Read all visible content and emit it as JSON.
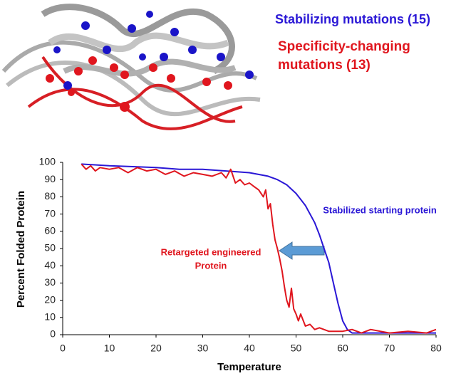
{
  "structure_labels": [
    "Stabilizing mutations (15)",
    "Specificity-changing",
    "mutations (13)"
  ],
  "chart_data": {
    "type": "line",
    "xlabel": "Temperature",
    "ylabel": "Percent Folded Protein",
    "xlim": [
      0,
      80
    ],
    "ylim": [
      0,
      100
    ],
    "xticks": [
      0,
      10,
      20,
      30,
      40,
      50,
      60,
      70,
      80
    ],
    "yticks": [
      0,
      10,
      20,
      30,
      40,
      50,
      60,
      70,
      80,
      90,
      100
    ],
    "grid": false,
    "annotations": [
      "Stabilized starting protein",
      "Retargeted engineered",
      "Protein"
    ],
    "series": [
      {
        "name": "Stabilized starting protein",
        "color": "#2a17d6",
        "x": [
          4,
          10,
          20,
          25,
          30,
          35,
          40,
          44,
          46,
          48,
          50,
          52,
          54,
          55,
          56,
          57,
          58,
          59,
          60,
          61,
          62,
          65,
          70,
          75,
          80
        ],
        "values": [
          99,
          98,
          97,
          96,
          96,
          95,
          94,
          92,
          90,
          87,
          82,
          75,
          65,
          58,
          50,
          42,
          30,
          18,
          8,
          3,
          1,
          1,
          1,
          1,
          1
        ]
      },
      {
        "name": "Retargeted engineered Protein",
        "color": "#e0161e",
        "x": [
          4,
          5,
          6,
          7,
          8,
          10,
          12,
          14,
          16,
          18,
          20,
          22,
          24,
          26,
          28,
          30,
          32,
          34,
          35,
          36,
          37,
          38,
          39,
          40,
          41,
          42,
          43,
          43.5,
          44,
          44.5,
          45,
          45.5,
          46,
          46.5,
          47,
          47.5,
          48,
          48.5,
          49,
          49.5,
          50,
          50.5,
          51,
          52,
          53,
          54,
          55,
          57,
          60,
          62,
          64,
          66,
          70,
          74,
          78,
          80
        ],
        "values": [
          99,
          96,
          98,
          95,
          97,
          96,
          97,
          94,
          97,
          95,
          96,
          93,
          95,
          92,
          94,
          93,
          92,
          94,
          91,
          96,
          88,
          90,
          87,
          88,
          86,
          84,
          80,
          84,
          73,
          76,
          64,
          55,
          50,
          44,
          37,
          28,
          20,
          16,
          27,
          15,
          12,
          8,
          12,
          5,
          6,
          3,
          4,
          2,
          2,
          3,
          1,
          3,
          1,
          2,
          1,
          3
        ]
      }
    ]
  }
}
